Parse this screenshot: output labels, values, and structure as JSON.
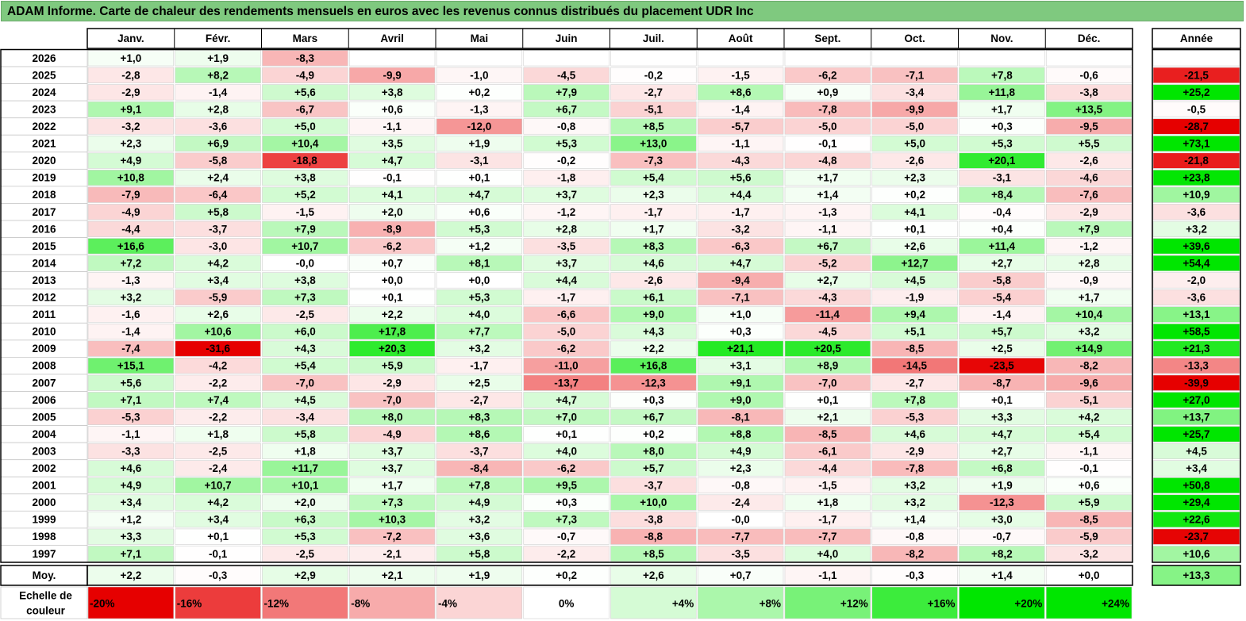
{
  "title": "ADAM Informe. Carte de chaleur des rendements mensuels en euros avec les revenus connus distribués du placement UDR Inc",
  "colors": {
    "title_bg": "#7fc97f",
    "strong_green": "#00e600",
    "strong_red": "#e60000",
    "neutral": "#ffffff"
  },
  "chart_data": {
    "type": "heatmap",
    "title": "ADAM Informe. Carte de chaleur des rendements mensuels en euros avec les revenus connus distribués du placement UDR Inc",
    "columns": [
      "Janv.",
      "Févr.",
      "Mars",
      "Avril",
      "Mai",
      "Juin",
      "Juil.",
      "Août",
      "Sept.",
      "Oct.",
      "Nov.",
      "Déc."
    ],
    "year_column_label": "Année",
    "rows": [
      {
        "label": "2026",
        "cells": [
          "+1,0",
          "+1,9",
          "-8,3",
          "",
          "",
          "",
          "",
          "",
          "",
          "",
          "",
          ""
        ],
        "year": ""
      },
      {
        "label": "2025",
        "cells": [
          "-2,8",
          "+8,2",
          "-4,9",
          "-9,9",
          "-1,0",
          "-4,5",
          "-0,2",
          "-1,5",
          "-6,2",
          "-7,1",
          "+7,8",
          "-0,6"
        ],
        "year": "-21,5"
      },
      {
        "label": "2024",
        "cells": [
          "-2,9",
          "-1,4",
          "+5,6",
          "+3,8",
          "+0,2",
          "+7,9",
          "-2,7",
          "+8,6",
          "+0,9",
          "-3,4",
          "+11,8",
          "-3,8"
        ],
        "year": "+25,2"
      },
      {
        "label": "2023",
        "cells": [
          "+9,1",
          "+2,8",
          "-6,7",
          "+0,6",
          "-1,3",
          "+6,7",
          "-5,1",
          "-1,4",
          "-7,8",
          "-9,9",
          "+1,7",
          "+13,5"
        ],
        "year": "-0,5"
      },
      {
        "label": "2022",
        "cells": [
          "-3,2",
          "-3,6",
          "+5,0",
          "-1,1",
          "-12,0",
          "-0,8",
          "+8,5",
          "-5,7",
          "-5,0",
          "-5,0",
          "+0,3",
          "-9,5"
        ],
        "year": "-28,7"
      },
      {
        "label": "2021",
        "cells": [
          "+2,3",
          "+6,9",
          "+10,4",
          "+3,5",
          "+1,9",
          "+5,3",
          "+13,0",
          "-1,1",
          "-0,1",
          "+5,0",
          "+5,3",
          "+5,5"
        ],
        "year": "+73,1"
      },
      {
        "label": "2020",
        "cells": [
          "+4,9",
          "-5,8",
          "-18,8",
          "+4,7",
          "-3,1",
          "-0,2",
          "-7,3",
          "-4,3",
          "-4,8",
          "-2,6",
          "+20,1",
          "-2,6"
        ],
        "year": "-21,8"
      },
      {
        "label": "2019",
        "cells": [
          "+10,8",
          "+2,4",
          "+3,8",
          "-0,1",
          "+0,1",
          "-1,8",
          "+5,4",
          "+5,6",
          "+1,7",
          "+2,3",
          "-3,1",
          "-4,6"
        ],
        "year": "+23,8"
      },
      {
        "label": "2018",
        "cells": [
          "-7,9",
          "-6,4",
          "+5,2",
          "+4,1",
          "+4,7",
          "+3,7",
          "+2,3",
          "+4,4",
          "+1,4",
          "+0,2",
          "+8,4",
          "-7,6"
        ],
        "year": "+10,9"
      },
      {
        "label": "2017",
        "cells": [
          "-4,9",
          "+5,8",
          "-1,5",
          "+2,0",
          "+0,6",
          "-1,2",
          "-1,7",
          "-1,7",
          "-1,3",
          "+4,1",
          "-0,4",
          "-2,9"
        ],
        "year": "-3,6"
      },
      {
        "label": "2016",
        "cells": [
          "-4,4",
          "-3,7",
          "+7,9",
          "-8,9",
          "+5,3",
          "+2,8",
          "+1,7",
          "-3,2",
          "-1,1",
          "+0,1",
          "+0,4",
          "+7,9"
        ],
        "year": "+3,2"
      },
      {
        "label": "2015",
        "cells": [
          "+16,6",
          "-3,0",
          "+10,7",
          "-6,2",
          "+1,2",
          "-3,5",
          "+8,3",
          "-6,3",
          "+6,7",
          "+2,6",
          "+11,4",
          "-1,2"
        ],
        "year": "+39,6"
      },
      {
        "label": "2014",
        "cells": [
          "+7,2",
          "+4,2",
          "-0,0",
          "+0,7",
          "+8,1",
          "+3,7",
          "+4,6",
          "+4,7",
          "-5,2",
          "+12,7",
          "+2,7",
          "+2,8"
        ],
        "year": "+54,4"
      },
      {
        "label": "2013",
        "cells": [
          "-1,3",
          "+3,4",
          "+3,8",
          "+0,0",
          "+0,0",
          "+4,4",
          "-2,6",
          "-9,4",
          "+2,7",
          "+4,5",
          "-5,8",
          "-0,9"
        ],
        "year": "-2,0"
      },
      {
        "label": "2012",
        "cells": [
          "+3,2",
          "-5,9",
          "+7,3",
          "+0,1",
          "+5,3",
          "-1,7",
          "+6,1",
          "-7,1",
          "-4,3",
          "-1,9",
          "-5,4",
          "+1,7"
        ],
        "year": "-3,6"
      },
      {
        "label": "2011",
        "cells": [
          "-1,6",
          "+2,6",
          "-2,5",
          "+2,2",
          "+4,0",
          "-6,6",
          "+9,0",
          "+1,0",
          "-11,4",
          "+9,4",
          "-1,4",
          "+10,4"
        ],
        "year": "+13,1"
      },
      {
        "label": "2010",
        "cells": [
          "-1,4",
          "+10,6",
          "+6,0",
          "+17,8",
          "+7,7",
          "-5,0",
          "+4,3",
          "+0,3",
          "-4,5",
          "+5,1",
          "+5,7",
          "+3,2"
        ],
        "year": "+58,5"
      },
      {
        "label": "2009",
        "cells": [
          "-7,4",
          "-31,6",
          "+4,3",
          "+20,3",
          "+3,2",
          "-6,2",
          "+2,2",
          "+21,1",
          "+20,5",
          "-8,5",
          "+2,5",
          "+14,9"
        ],
        "year": "+21,3"
      },
      {
        "label": "2008",
        "cells": [
          "+15,1",
          "-4,2",
          "+5,4",
          "+5,9",
          "-1,7",
          "-11,0",
          "+16,8",
          "+3,1",
          "+8,9",
          "-14,5",
          "-23,5",
          "-8,2"
        ],
        "year": "-13,3"
      },
      {
        "label": "2007",
        "cells": [
          "+5,6",
          "-2,2",
          "-7,0",
          "-2,9",
          "+2,5",
          "-13,7",
          "-12,3",
          "+9,1",
          "-7,0",
          "-2,7",
          "-8,7",
          "-9,6"
        ],
        "year": "-39,9"
      },
      {
        "label": "2006",
        "cells": [
          "+7,1",
          "+7,4",
          "+4,5",
          "-7,0",
          "-2,7",
          "+4,7",
          "+0,3",
          "+9,0",
          "+0,1",
          "+7,8",
          "+0,1",
          "-5,1"
        ],
        "year": "+27,0"
      },
      {
        "label": "2005",
        "cells": [
          "-5,3",
          "-2,2",
          "-3,4",
          "+8,0",
          "+8,3",
          "+7,0",
          "+6,7",
          "-8,1",
          "+2,1",
          "-5,3",
          "+3,3",
          "+4,2"
        ],
        "year": "+13,7"
      },
      {
        "label": "2004",
        "cells": [
          "-1,1",
          "+1,8",
          "+5,8",
          "-4,9",
          "+8,6",
          "+0,1",
          "+0,2",
          "+8,8",
          "-8,5",
          "+4,6",
          "+4,7",
          "+5,4"
        ],
        "year": "+25,7"
      },
      {
        "label": "2003",
        "cells": [
          "-3,3",
          "-2,5",
          "+1,8",
          "+3,7",
          "-3,7",
          "+4,0",
          "+8,0",
          "+4,9",
          "-6,1",
          "-2,9",
          "+2,7",
          "-1,1"
        ],
        "year": "+4,5"
      },
      {
        "label": "2002",
        "cells": [
          "+4,6",
          "-2,4",
          "+11,7",
          "+3,7",
          "-8,4",
          "-6,2",
          "+5,7",
          "+2,3",
          "-4,4",
          "-7,8",
          "+6,8",
          "-0,1"
        ],
        "year": "+3,4"
      },
      {
        "label": "2001",
        "cells": [
          "+4,9",
          "+10,7",
          "+10,1",
          "+1,7",
          "+7,8",
          "+9,5",
          "-3,7",
          "-0,8",
          "-1,5",
          "+3,2",
          "+1,9",
          "+0,6"
        ],
        "year": "+50,8"
      },
      {
        "label": "2000",
        "cells": [
          "+3,4",
          "+4,2",
          "+2,0",
          "+7,3",
          "+4,9",
          "+0,3",
          "+10,0",
          "-2,4",
          "+1,8",
          "+3,2",
          "-12,3",
          "+5,9"
        ],
        "year": "+29,4"
      },
      {
        "label": "1999",
        "cells": [
          "+1,2",
          "+3,4",
          "+6,3",
          "+10,3",
          "+3,2",
          "+7,3",
          "-3,8",
          "-0,0",
          "-1,7",
          "+1,4",
          "+3,0",
          "-8,5"
        ],
        "year": "+22,6"
      },
      {
        "label": "1998",
        "cells": [
          "+3,3",
          "+0,1",
          "+5,3",
          "-7,2",
          "+3,6",
          "-0,7",
          "-8,8",
          "-7,7",
          "-7,7",
          "-0,8",
          "-0,7",
          "-5,9"
        ],
        "year": "-23,7"
      },
      {
        "label": "1997",
        "cells": [
          "+7,1",
          "-0,1",
          "-2,5",
          "-2,1",
          "+5,8",
          "-2,2",
          "+8,5",
          "-3,5",
          "+4,0",
          "-8,2",
          "+8,2",
          "-3,2"
        ],
        "year": "+10,6"
      }
    ],
    "average_row": {
      "label": "Moy.",
      "cells": [
        "+2,2",
        "-0,3",
        "+2,9",
        "+2,1",
        "+1,9",
        "+0,2",
        "+2,6",
        "+0,7",
        "-1,1",
        "-0,3",
        "+1,4",
        "+0,0"
      ],
      "year": "+13,3"
    },
    "scale": {
      "label_line1": "Echelle de",
      "label_line2": "couleur",
      "steps": [
        "-20%",
        "-16%",
        "-12%",
        "-8%",
        "-4%",
        "0%",
        "+4%",
        "+8%",
        "+12%",
        "+16%",
        "+20%",
        "+24%"
      ]
    }
  }
}
